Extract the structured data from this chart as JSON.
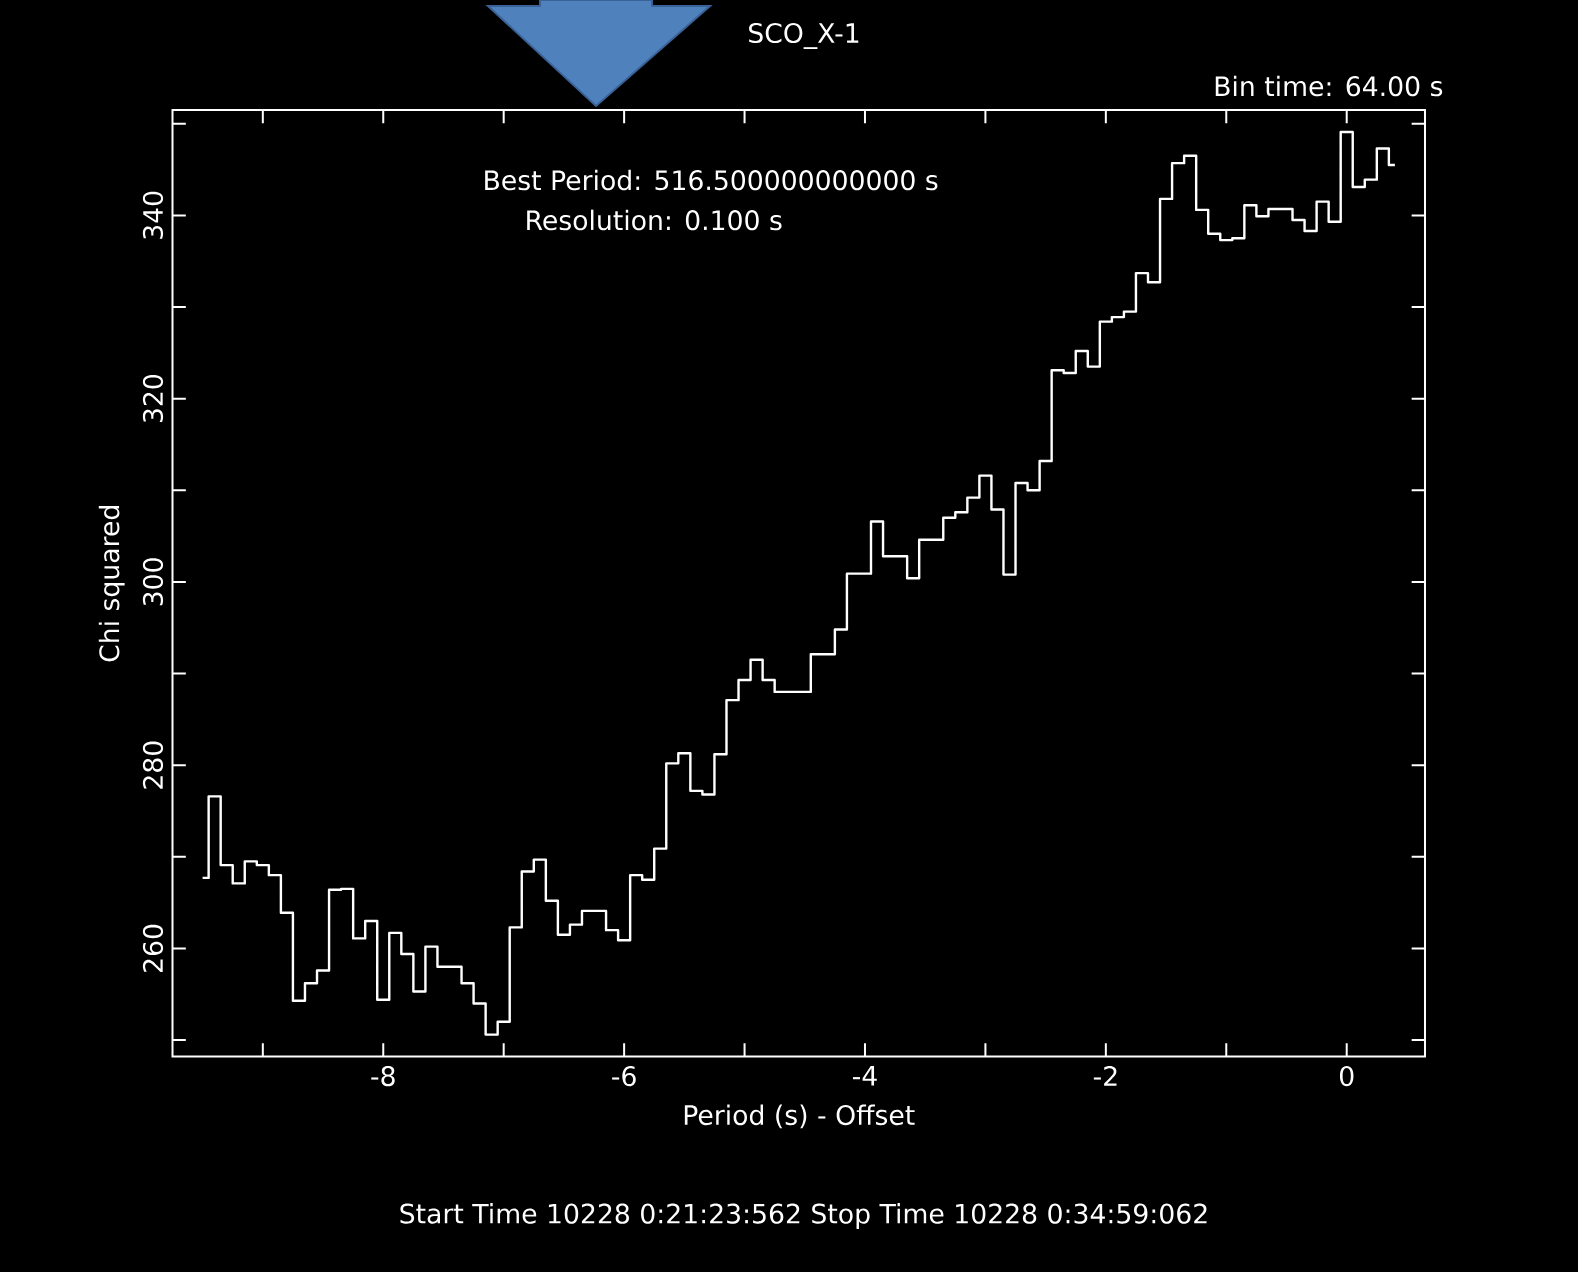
{
  "chart_data": {
    "type": "step",
    "title": "SCO_X-1",
    "xlabel": "Period (s) - Offset",
    "ylabel": "Chi squared",
    "annotations": [
      "Bin time:    64.00    s",
      "Best Period:  516.500000000000    s",
      "Resolution:          0.100    s",
      "Start Time 10228  0:21:23:562     Stop Time 10228  0:34:59:062"
    ],
    "color": "#ffffff",
    "x": [
      -9.5,
      -9.4,
      -9.3,
      -9.2,
      -9.1,
      -9.0,
      -8.9,
      -8.8,
      -8.7,
      -8.6,
      -8.5,
      -8.4,
      -8.3,
      -8.2,
      -8.1,
      -8.0,
      -7.9,
      -7.8,
      -7.7,
      -7.6,
      -7.5,
      -7.4,
      -7.3,
      -7.2,
      -7.1,
      -7.0,
      -6.9,
      -6.8,
      -6.7,
      -6.6,
      -6.5,
      -6.4,
      -6.3,
      -6.2,
      -6.1,
      -6.0,
      -5.9,
      -5.8,
      -5.7,
      -5.6,
      -5.5,
      -5.4,
      -5.3,
      -5.2,
      -5.1,
      -5.0,
      -4.9,
      -4.8,
      -4.7,
      -4.6,
      -4.5,
      -4.4,
      -4.3,
      -4.2,
      -4.1,
      -4.0,
      -3.9,
      -3.8,
      -3.7,
      -3.6,
      -3.5,
      -3.4,
      -3.3,
      -3.2,
      -3.1,
      -3.0,
      -2.9,
      -2.8,
      -2.7,
      -2.6,
      -2.5,
      -2.4,
      -2.3,
      -2.2,
      -2.1,
      -2.0,
      -1.9,
      -1.8,
      -1.7,
      -1.6,
      -1.5,
      -1.4,
      -1.3,
      -1.2,
      -1.1,
      -1.0,
      -0.9,
      -0.8,
      -0.7,
      -0.6,
      -0.5,
      -0.4,
      -0.3,
      -0.2,
      -0.1,
      0.0,
      0.1,
      0.2,
      0.3,
      0.4
    ],
    "values": [
      267.7,
      276.6,
      269.1,
      267.1,
      269.5,
      269.1,
      268.0,
      263.9,
      254.3,
      256.2,
      257.6,
      266.4,
      266.5,
      261.1,
      263.0,
      254.4,
      261.7,
      259.4,
      255.3,
      260.2,
      258.0,
      258.0,
      256.2,
      254.0,
      250.6,
      252.0,
      262.3,
      268.4,
      269.7,
      265.2,
      261.5,
      262.6,
      264.1,
      264.1,
      262.0,
      260.9,
      268.0,
      267.5,
      270.9,
      280.2,
      281.3,
      277.2,
      276.8,
      281.2,
      287.1,
      289.3,
      291.5,
      289.3,
      288.0,
      288.0,
      288.0,
      292.1,
      292.1,
      294.8,
      300.9,
      300.9,
      306.6,
      302.8,
      302.8,
      300.4,
      304.6,
      304.6,
      307.0,
      307.6,
      309.2,
      311.6,
      307.9,
      300.8,
      310.8,
      310.0,
      313.2,
      323.1,
      322.8,
      325.2,
      323.5,
      328.4,
      328.9,
      329.5,
      333.7,
      332.7,
      341.8,
      345.7,
      346.5,
      340.6,
      338.0,
      337.3,
      337.5,
      341.1,
      339.9,
      340.7,
      340.7,
      339.5,
      338.3,
      341.5,
      339.3,
      349.1,
      343.1,
      343.9,
      347.3,
      345.5
    ],
    "xlim": [
      -9.75,
      0.65
    ],
    "ylim": [
      248.2,
      351.5
    ],
    "xticks": [
      {
        "value": -9,
        "label": null
      },
      -8,
      {
        "value": -7,
        "label": null
      },
      -6,
      {
        "value": -5,
        "label": null
      },
      -4,
      {
        "value": -3,
        "label": null
      },
      -2,
      {
        "value": -1,
        "label": null
      },
      0
    ],
    "yticks": [
      {
        "value": 250,
        "label": null
      },
      260,
      {
        "value": 270,
        "label": null
      },
      280,
      {
        "value": 290,
        "label": null
      },
      300,
      {
        "value": 310,
        "label": null
      },
      320,
      {
        "value": 330,
        "label": null
      },
      340,
      {
        "value": 350,
        "label": null
      }
    ]
  }
}
